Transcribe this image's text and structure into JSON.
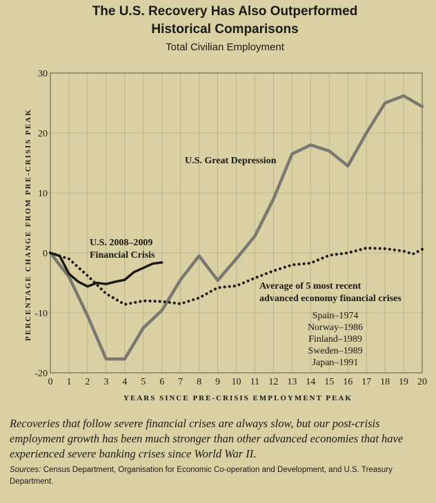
{
  "chart_data": {
    "type": "line",
    "title_line1": "The U.S. Recovery Has Also Outperformed",
    "title_line2": "Historical Comparisons",
    "subtitle": "Total Civilian Employment",
    "ylabel": "PERCENTAGE CHANGE FROM PRE-CRISIS PEAK",
    "xlabel": "YEARS SINCE PRE-CRISIS EMPLOYMENT PEAK",
    "xlim": [
      0,
      20
    ],
    "ylim": [
      -20,
      30
    ],
    "x_ticks": [
      "0",
      "1",
      "2",
      "3",
      "4",
      "5",
      "6",
      "7",
      "8",
      "9",
      "10",
      "11",
      "12",
      "13",
      "14",
      "15",
      "16",
      "17",
      "18",
      "19",
      "20"
    ],
    "y_ticks": [
      "30",
      "20",
      "10",
      "0",
      "-10",
      "-20"
    ],
    "series": [
      {
        "name": "U.S. Great Depression",
        "label": "U.S. Great Depression",
        "style": "solid-thick",
        "color": "#7a786f",
        "x": [
          0,
          1,
          2,
          3,
          4,
          5,
          6,
          7,
          8,
          9,
          10,
          11,
          12,
          13,
          14,
          15,
          16,
          17,
          18,
          19,
          20
        ],
        "y": [
          0,
          -4,
          -10.5,
          -17.7,
          -17.7,
          -12.5,
          -9.6,
          -4.5,
          -0.5,
          -4.6,
          -1,
          2.8,
          9,
          16.5,
          18,
          17,
          14.5,
          20,
          25,
          26.2,
          24.4
        ]
      },
      {
        "name": "U.S. 2008-2009 Financial Crisis",
        "label_line1": "U.S. 2008–2009",
        "label_line2": "Financial Crisis",
        "style": "solid",
        "color": "#1c1a14",
        "x": [
          0,
          0.5,
          1,
          1.5,
          2,
          2.5,
          3,
          3.5,
          4,
          4.5,
          5,
          5.5,
          6
        ],
        "y": [
          0,
          -0.5,
          -3.5,
          -4.8,
          -5.6,
          -5,
          -5.2,
          -4.8,
          -4.5,
          -3.2,
          -2.5,
          -1.8,
          -1.6
        ]
      },
      {
        "name": "Average of 5 most recent advanced economy financial crises",
        "label_line1": "Average of 5 most recent",
        "label_line2": "advanced economy financial crises",
        "style": "dotted",
        "color": "#1c1a14",
        "x": [
          0,
          1,
          2,
          3,
          4,
          5,
          6,
          7,
          8,
          9,
          10,
          11,
          12,
          13,
          14,
          15,
          16,
          17,
          18,
          19,
          19.5,
          20
        ],
        "y": [
          0,
          -1,
          -3.8,
          -6.8,
          -8.6,
          -8,
          -8.1,
          -8.5,
          -7.5,
          -5.8,
          -5.5,
          -4.2,
          -3,
          -2,
          -1.7,
          -0.4,
          0,
          0.8,
          0.7,
          0.3,
          -0.2,
          0.6
        ]
      }
    ],
    "countries": [
      "Spain–1974",
      "Norway–1986",
      "Finland–1989",
      "Sweden–1989",
      "Japan–1991"
    ]
  },
  "caption": "Recoveries that follow severe financial crises are always slow, but our post-crisis employment growth has been much stronger than other advanced economies that have experienced severe banking crises since World War II.",
  "sources_label": "Sources:",
  "sources_text": "Census Department, Organisation for Economic Co-operation and Development, and U.S. Treasury Department."
}
